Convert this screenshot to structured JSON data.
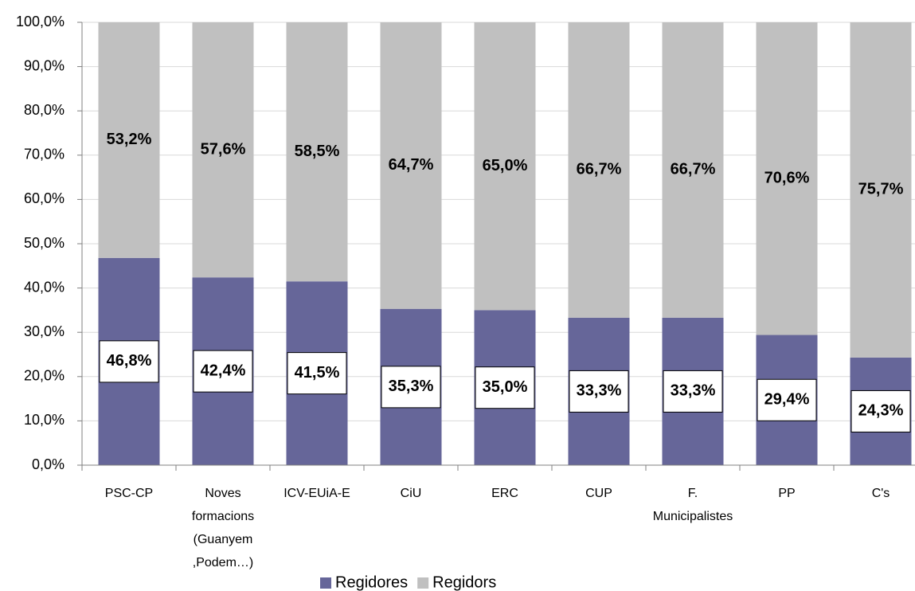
{
  "chart_data": {
    "type": "stacked_bar",
    "categories": [
      [
        "PSC-CP"
      ],
      [
        "Noves",
        "formacions",
        "(Guanyem",
        ",Podem…)"
      ],
      [
        "ICV-EUiA-E"
      ],
      [
        "CiU"
      ],
      [
        "ERC"
      ],
      [
        "CUP"
      ],
      [
        "F.",
        "Municipalistes"
      ],
      [
        "PP"
      ],
      [
        "C's"
      ]
    ],
    "series": [
      {
        "name": "Regidores",
        "color": "#666699",
        "values": [
          46.8,
          42.4,
          41.5,
          35.3,
          35.0,
          33.3,
          33.3,
          29.4,
          24.3
        ],
        "value_labels": [
          "46,8%",
          "42,4%",
          "41,5%",
          "35,3%",
          "35,0%",
          "33,3%",
          "33,3%",
          "29,4%",
          "24,3%"
        ]
      },
      {
        "name": "Regidors",
        "color": "#c0c0c0",
        "values": [
          53.2,
          57.6,
          58.5,
          64.7,
          65.0,
          66.7,
          66.7,
          70.6,
          75.7
        ],
        "value_labels": [
          "53,2%",
          "57,6%",
          "58,5%",
          "64,7%",
          "65,0%",
          "66,7%",
          "66,7%",
          "70,6%",
          "75,7%"
        ]
      }
    ],
    "ylim": [
      0,
      100
    ],
    "yticks": [
      {
        "value": 0,
        "label": "0,0%"
      },
      {
        "value": 10,
        "label": "10,0%"
      },
      {
        "value": 20,
        "label": "20,0%"
      },
      {
        "value": 30,
        "label": "30,0%"
      },
      {
        "value": 40,
        "label": "40,0%"
      },
      {
        "value": 50,
        "label": "50,0%"
      },
      {
        "value": 60,
        "label": "60,0%"
      },
      {
        "value": 70,
        "label": "70,0%"
      },
      {
        "value": 80,
        "label": "80,0%"
      },
      {
        "value": 90,
        "label": "90,0%"
      },
      {
        "value": 100,
        "label": "100,0%"
      }
    ],
    "grid": true,
    "legend": "bottom"
  }
}
